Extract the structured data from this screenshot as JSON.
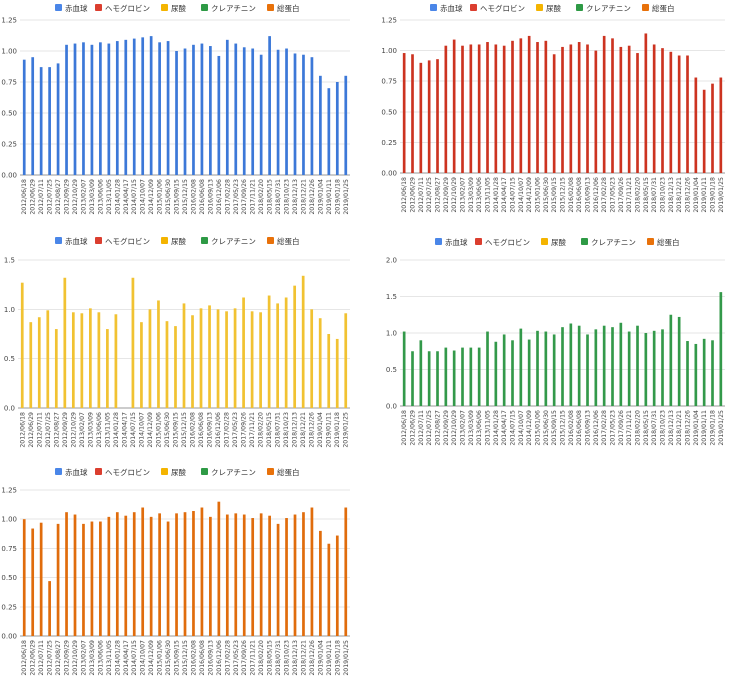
{
  "legend": [
    {
      "name": "赤血球",
      "color": "#4a86e8"
    },
    {
      "name": "ヘモグロビン",
      "color": "#db3e2f"
    },
    {
      "name": "尿酸",
      "color": "#f4b400"
    },
    {
      "name": "クレアチニン",
      "color": "#2e9a45"
    },
    {
      "name": "総蛋白",
      "color": "#e8710a"
    }
  ],
  "chart_data": [
    {
      "type": "bar",
      "title": "",
      "series_name": "赤血球",
      "color": "#3c78d8",
      "ylim": [
        0,
        1.25
      ],
      "yticks": [
        "0.00",
        "0.25",
        "0.50",
        "0.75",
        "1.00",
        "1.25"
      ],
      "grid": true,
      "legend": "top",
      "categories": [
        "2012/06/18",
        "2012/06/29",
        "2012/07/11",
        "2012/07/25",
        "2012/08/27",
        "2012/09/29",
        "2012/10/29",
        "2013/02/07",
        "2013/03/09",
        "2013/06/06",
        "2013/11/05",
        "2014/01/28",
        "2014/04/17",
        "2014/07/15",
        "2014/10/07",
        "2014/12/09",
        "2015/01/06",
        "2015/06/30",
        "2015/09/15",
        "2015/12/15",
        "2016/02/08",
        "2016/06/08",
        "2016/09/13",
        "2016/12/06",
        "2017/02/28",
        "2017/05/23",
        "2017/09/26",
        "2017/11/21",
        "2018/02/20",
        "2018/05/15",
        "2018/07/31",
        "2018/10/23",
        "2018/12/13",
        "2018/12/21",
        "2018/12/26",
        "2019/01/04",
        "2019/01/11",
        "2019/01/18",
        "2019/01/25"
      ],
      "values": [
        0.93,
        0.95,
        0.87,
        0.87,
        0.9,
        1.05,
        1.06,
        1.07,
        1.05,
        1.07,
        1.06,
        1.08,
        1.09,
        1.1,
        1.11,
        1.12,
        1.07,
        1.08,
        1.0,
        1.02,
        1.05,
        1.06,
        1.04,
        0.96,
        1.09,
        1.06,
        1.03,
        1.02,
        0.97,
        1.12,
        1.01,
        1.02,
        0.98,
        0.97,
        0.95,
        0.8,
        0.7,
        0.75,
        0.8
      ]
    },
    {
      "type": "bar",
      "title": "",
      "series_name": "ヘモグロビン",
      "color": "#cc3320",
      "ylim": [
        0,
        1.25
      ],
      "yticks": [
        "0.00",
        "0.25",
        "0.50",
        "0.75",
        "1.00",
        "1.25"
      ],
      "grid": true,
      "legend": "top",
      "categories": [
        "2012/06/18",
        "2012/06/29",
        "2012/07/11",
        "2012/07/25",
        "2012/08/27",
        "2012/09/29",
        "2012/10/29",
        "2013/02/07",
        "2013/03/09",
        "2013/06/06",
        "2013/11/05",
        "2014/01/28",
        "2014/04/17",
        "2014/07/15",
        "2014/10/07",
        "2014/12/09",
        "2015/01/06",
        "2015/06/30",
        "2015/09/15",
        "2015/12/15",
        "2016/02/08",
        "2016/06/08",
        "2016/09/13",
        "2016/12/06",
        "2017/02/28",
        "2017/05/23",
        "2017/09/26",
        "2017/11/21",
        "2018/02/20",
        "2018/05/15",
        "2018/07/31",
        "2018/10/23",
        "2018/12/13",
        "2018/12/21",
        "2018/12/26",
        "2019/01/04",
        "2019/01/11",
        "2019/01/18",
        "2019/01/25"
      ],
      "values": [
        0.98,
        0.97,
        0.9,
        0.92,
        0.93,
        1.04,
        1.09,
        1.04,
        1.05,
        1.05,
        1.07,
        1.05,
        1.04,
        1.08,
        1.1,
        1.12,
        1.07,
        1.08,
        0.97,
        1.03,
        1.05,
        1.07,
        1.05,
        1.0,
        1.12,
        1.1,
        1.03,
        1.04,
        0.98,
        1.14,
        1.05,
        1.02,
        0.99,
        0.96,
        0.96,
        0.78,
        0.68,
        0.73,
        0.78
      ]
    },
    {
      "type": "bar",
      "title": "",
      "series_name": "尿酸",
      "color": "#f1c232",
      "ylim": [
        0,
        1.5
      ],
      "yticks": [
        "0.0",
        "0.5",
        "1.0",
        "1.5"
      ],
      "grid": true,
      "legend": "top",
      "categories": [
        "2012/06/18",
        "2012/06/29",
        "2012/07/11",
        "2012/07/25",
        "2012/08/27",
        "2012/09/29",
        "2012/10/29",
        "2013/02/07",
        "2013/03/09",
        "2013/06/06",
        "2013/11/05",
        "2014/01/28",
        "2014/04/17",
        "2014/07/15",
        "2014/10/07",
        "2014/12/09",
        "2015/01/06",
        "2015/06/30",
        "2015/09/15",
        "2015/12/15",
        "2016/02/08",
        "2016/06/08",
        "2016/09/13",
        "2016/12/06",
        "2017/02/28",
        "2017/05/23",
        "2017/09/26",
        "2017/11/21",
        "2018/02/20",
        "2018/05/15",
        "2018/07/31",
        "2018/10/23",
        "2018/12/13",
        "2018/12/21",
        "2018/12/26",
        "2019/01/04",
        "2019/01/11",
        "2019/01/18",
        "2019/01/25"
      ],
      "values": [
        1.27,
        0.87,
        0.92,
        0.99,
        0.8,
        1.32,
        0.97,
        0.96,
        1.01,
        0.97,
        0.8,
        0.95,
        null,
        1.32,
        0.87,
        1.0,
        1.09,
        0.88,
        0.83,
        1.06,
        0.94,
        1.01,
        1.04,
        1.0,
        0.98,
        1.01,
        1.12,
        0.98,
        0.97,
        1.14,
        1.06,
        1.12,
        1.24,
        1.34,
        1.0,
        0.91,
        0.75,
        0.7,
        0.96
      ]
    },
    {
      "type": "bar",
      "title": "",
      "series_name": "クレアチニン",
      "color": "#33994a",
      "ylim": [
        0,
        2.0
      ],
      "yticks": [
        "0.0",
        "0.5",
        "1.0",
        "1.5",
        "2.0"
      ],
      "grid": true,
      "legend": "top",
      "categories": [
        "2012/06/18",
        "2012/06/29",
        "2012/07/11",
        "2012/07/25",
        "2012/08/27",
        "2012/09/29",
        "2012/10/29",
        "2013/02/07",
        "2013/03/09",
        "2013/06/06",
        "2013/11/05",
        "2014/01/28",
        "2014/04/17",
        "2014/07/15",
        "2014/10/07",
        "2014/12/09",
        "2015/01/06",
        "2015/06/30",
        "2015/09/15",
        "2015/12/15",
        "2016/02/08",
        "2016/06/08",
        "2016/09/13",
        "2016/12/06",
        "2017/02/28",
        "2017/05/23",
        "2017/09/26",
        "2017/11/21",
        "2018/02/20",
        "2018/05/15",
        "2018/07/31",
        "2018/10/23",
        "2018/12/13",
        "2018/12/21",
        "2018/12/26",
        "2019/01/04",
        "2019/01/11",
        "2019/01/18",
        "2019/01/25"
      ],
      "values": [
        1.02,
        0.75,
        0.9,
        0.75,
        0.75,
        0.8,
        0.76,
        0.8,
        0.8,
        0.8,
        1.02,
        0.88,
        0.98,
        0.9,
        1.06,
        0.91,
        1.03,
        1.02,
        0.98,
        1.08,
        1.13,
        1.1,
        0.98,
        1.05,
        1.1,
        1.08,
        1.14,
        1.02,
        1.1,
        1.0,
        1.03,
        1.05,
        1.25,
        1.22,
        0.89,
        0.85,
        0.92,
        0.9,
        1.56
      ]
    },
    {
      "type": "bar",
      "title": "",
      "series_name": "総蛋白",
      "color": "#e06c0c",
      "ylim": [
        0,
        1.25
      ],
      "yticks": [
        "0.00",
        "0.25",
        "0.50",
        "0.75",
        "1.00",
        "1.25"
      ],
      "grid": true,
      "legend": "top",
      "categories": [
        "2012/06/18",
        "2012/06/29",
        "2012/07/11",
        "2012/07/25",
        "2012/08/27",
        "2012/09/29",
        "2012/10/29",
        "2013/02/07",
        "2013/03/09",
        "2013/06/06",
        "2013/11/05",
        "2014/01/28",
        "2014/04/17",
        "2014/07/15",
        "2014/10/07",
        "2014/12/09",
        "2015/01/06",
        "2015/06/30",
        "2015/09/15",
        "2015/12/15",
        "2016/02/08",
        "2016/06/08",
        "2016/09/13",
        "2016/12/06",
        "2017/02/28",
        "2017/05/23",
        "2017/09/26",
        "2017/11/21",
        "2018/02/20",
        "2018/05/15",
        "2018/07/31",
        "2018/10/23",
        "2018/12/13",
        "2018/12/21",
        "2018/12/26",
        "2019/01/04",
        "2019/01/11",
        "2019/01/18",
        "2019/01/25"
      ],
      "values": [
        1.0,
        0.92,
        0.97,
        0.47,
        0.96,
        1.06,
        1.04,
        0.96,
        0.98,
        0.98,
        1.02,
        1.06,
        1.03,
        1.06,
        1.1,
        1.02,
        1.05,
        0.98,
        1.05,
        1.06,
        1.07,
        1.1,
        1.02,
        1.15,
        1.04,
        1.05,
        1.04,
        1.01,
        1.05,
        1.03,
        0.96,
        1.01,
        1.04,
        1.06,
        1.1,
        0.9,
        0.79,
        0.86,
        1.1
      ]
    }
  ]
}
